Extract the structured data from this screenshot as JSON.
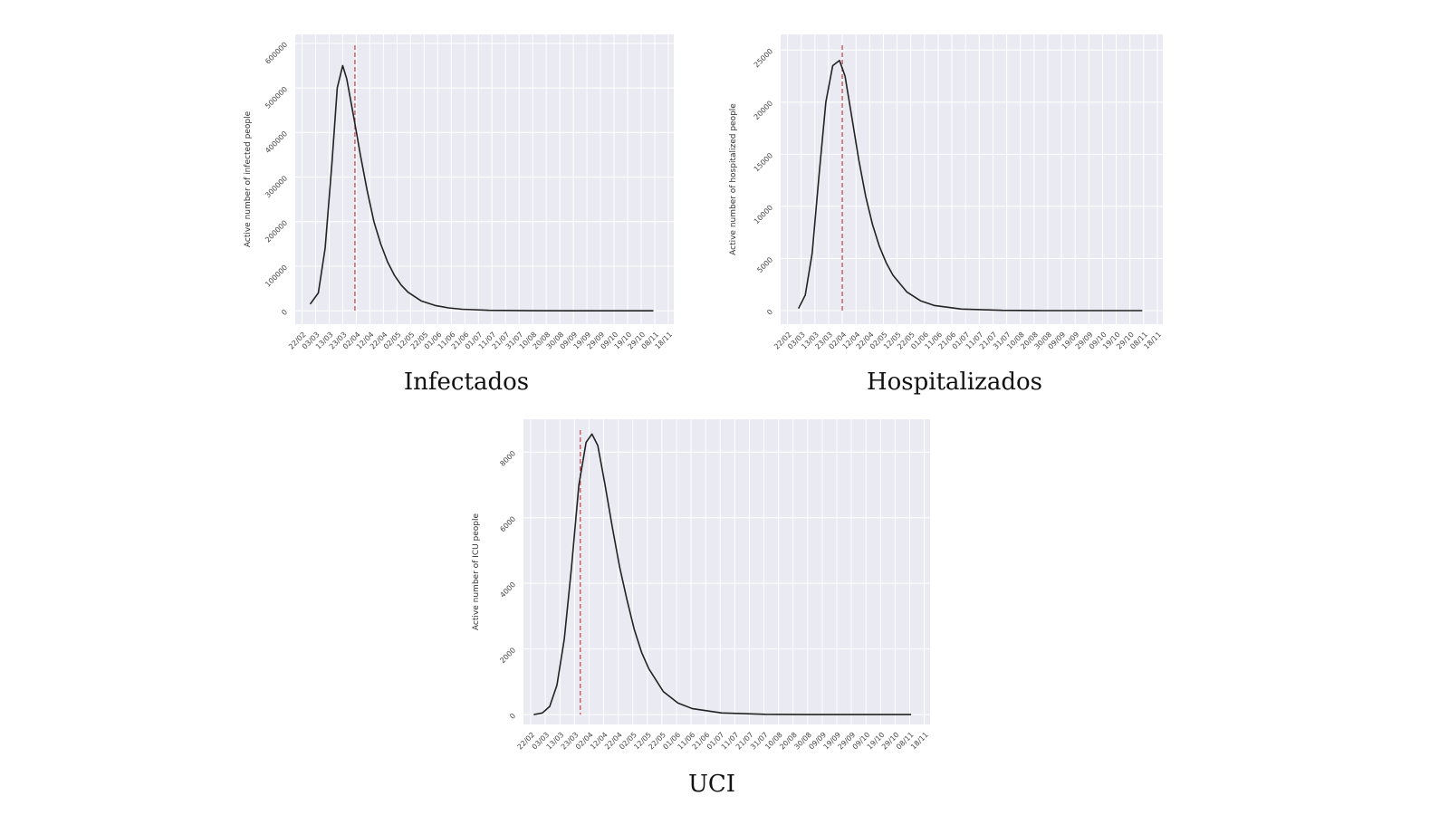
{
  "chart_data": [
    {
      "type": "line",
      "title": "Infectados",
      "ylabel": "Active number of infected people",
      "x": [
        "28/02",
        "05/03",
        "10/03",
        "15/03",
        "19/03",
        "23/03",
        "26/03",
        "29/03",
        "01/04",
        "05/04",
        "10/04",
        "15/04",
        "20/04",
        "25/04",
        "30/04",
        "05/05",
        "10/05",
        "20/05",
        "30/05",
        "09/06",
        "19/06",
        "09/07",
        "08/08",
        "07/09",
        "07/10",
        "07/11"
      ],
      "series": [
        {
          "name": "Infectados",
          "color": "#222222",
          "values": [
            15000,
            40000,
            140000,
            330000,
            500000,
            550000,
            520000,
            470000,
            420000,
            350000,
            270000,
            200000,
            150000,
            110000,
            80000,
            58000,
            42000,
            22000,
            12000,
            6500,
            3500,
            1000,
            200,
            50,
            10,
            0
          ]
        }
      ],
      "marker_line": "01/04",
      "marker_color": "#c44e52",
      "xlim": [
        "17/02",
        "22/11"
      ],
      "ylim": [
        -30000,
        620000
      ],
      "xticks": [
        "22/02",
        "03/03",
        "13/03",
        "23/03",
        "02/04",
        "12/04",
        "22/04",
        "02/05",
        "12/05",
        "22/05",
        "01/06",
        "11/06",
        "21/06",
        "01/07",
        "11/07",
        "21/07",
        "31/07",
        "10/08",
        "20/08",
        "30/08",
        "09/09",
        "19/09",
        "29/09",
        "09/10",
        "19/10",
        "29/10",
        "08/11",
        "18/11"
      ],
      "yticks": [
        0,
        100000,
        200000,
        300000,
        400000,
        500000,
        600000
      ],
      "grid": true
    },
    {
      "type": "line",
      "title": "Hospitalizados",
      "ylabel": "Active number of hospitalized people",
      "x": [
        "01/03",
        "06/03",
        "11/03",
        "16/03",
        "21/03",
        "26/03",
        "31/03",
        "04/04",
        "09/04",
        "14/04",
        "19/04",
        "24/04",
        "29/04",
        "04/05",
        "09/05",
        "19/05",
        "29/05",
        "08/06",
        "28/06",
        "28/07",
        "27/08",
        "07/11"
      ],
      "series": [
        {
          "name": "Hospitalizados",
          "color": "#222222",
          "values": [
            200,
            1500,
            5500,
            13000,
            20000,
            23500,
            24000,
            22500,
            18500,
            14500,
            11000,
            8300,
            6200,
            4600,
            3400,
            1800,
            950,
            500,
            150,
            30,
            5,
            0
          ]
        }
      ],
      "marker_line": "02/04",
      "marker_color": "#c44e52",
      "xlim": [
        "17/02",
        "22/11"
      ],
      "ylim": [
        -1300,
        26500
      ],
      "xticks": [
        "22/02",
        "03/03",
        "13/03",
        "23/03",
        "02/04",
        "12/04",
        "22/04",
        "02/05",
        "12/05",
        "22/05",
        "01/06",
        "11/06",
        "21/06",
        "01/07",
        "11/07",
        "21/07",
        "31/07",
        "10/08",
        "20/08",
        "30/08",
        "09/09",
        "19/09",
        "29/09",
        "09/10",
        "19/10",
        "29/10",
        "08/11",
        "18/11"
      ],
      "yticks": [
        0,
        5000,
        10000,
        15000,
        20000,
        25000
      ],
      "grid": true
    },
    {
      "type": "line",
      "title": "UCI",
      "ylabel": "Active number of ICU people",
      "x": [
        "24/02",
        "01/03",
        "06/03",
        "11/03",
        "16/03",
        "21/03",
        "26/03",
        "31/03",
        "04/04",
        "08/04",
        "13/04",
        "18/04",
        "23/04",
        "28/04",
        "03/05",
        "08/05",
        "13/05",
        "23/05",
        "02/06",
        "12/06",
        "02/07",
        "01/08",
        "31/08",
        "09/11"
      ],
      "series": [
        {
          "name": "UCI",
          "color": "#222222",
          "values": [
            0,
            50,
            250,
            900,
            2300,
            4500,
            7000,
            8300,
            8550,
            8200,
            7000,
            5700,
            4500,
            3500,
            2600,
            1900,
            1400,
            700,
            350,
            180,
            50,
            10,
            2,
            0
          ]
        }
      ],
      "marker_line": "27/03",
      "marker_color": "#c44e52",
      "xlim": [
        "17/02",
        "22/11"
      ],
      "ylim": [
        -300,
        9000
      ],
      "xticks": [
        "22/02",
        "03/03",
        "13/03",
        "23/03",
        "02/04",
        "12/04",
        "22/04",
        "02/05",
        "12/05",
        "22/05",
        "01/06",
        "11/06",
        "21/06",
        "01/07",
        "11/07",
        "21/07",
        "31/07",
        "10/08",
        "20/08",
        "30/08",
        "09/09",
        "19/09",
        "29/09",
        "09/10",
        "19/10",
        "29/10",
        "08/11",
        "18/11"
      ],
      "yticks": [
        0,
        2000,
        4000,
        6000,
        8000
      ],
      "grid": true
    }
  ]
}
